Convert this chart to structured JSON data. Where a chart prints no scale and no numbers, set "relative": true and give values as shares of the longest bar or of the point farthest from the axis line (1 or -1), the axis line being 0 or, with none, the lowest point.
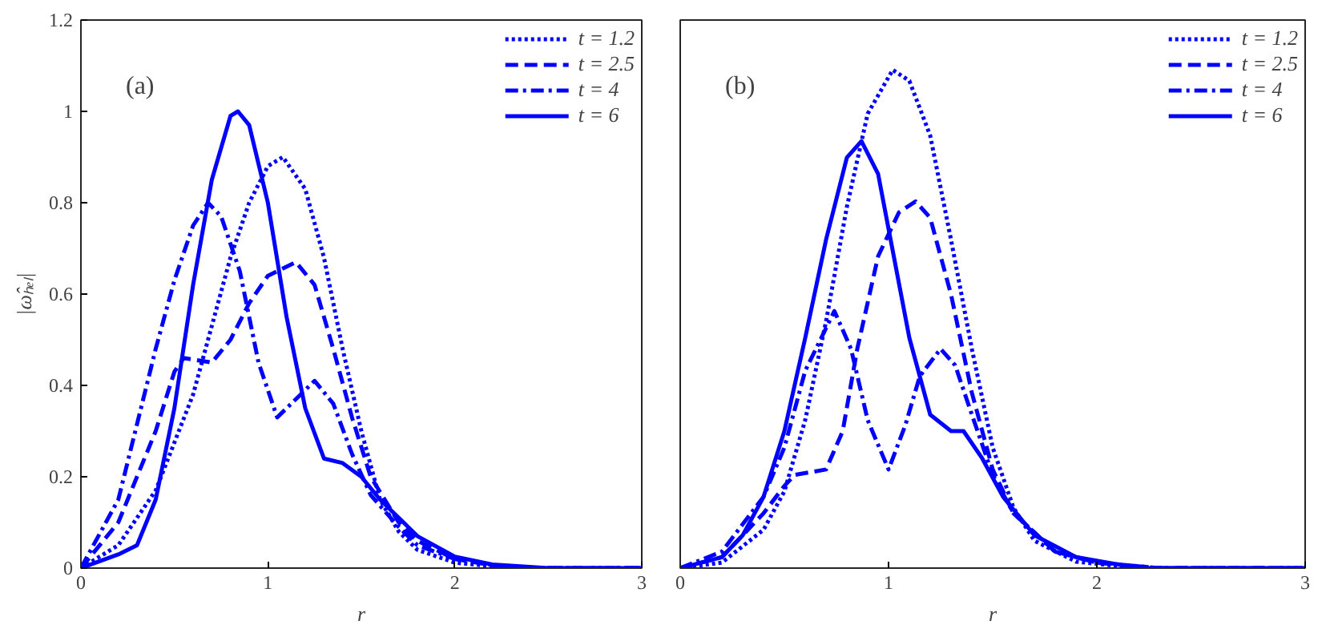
{
  "chart_data": [
    {
      "type": "line",
      "xlabel": "r",
      "ylabel": "|ω̂ₕₑₗ|",
      "annotations": [
        "(a)"
      ],
      "xlim": [
        0,
        3
      ],
      "ylim": [
        0,
        1.2
      ],
      "xticks": [
        0,
        1,
        2,
        3
      ],
      "yticks": [
        0,
        0.2,
        0.4,
        0.6,
        0.8,
        1,
        1.2
      ],
      "grid": false,
      "legend": "top right",
      "series": [
        {
          "name": "t = 1.2",
          "color": "#0000ff",
          "line_style": "dotted",
          "x": [
            0,
            0.2,
            0.4,
            0.6,
            0.8,
            0.9,
            1.0,
            1.08,
            1.2,
            1.3,
            1.4,
            1.5,
            1.6,
            1.7,
            1.8,
            2.0,
            2.3,
            3
          ],
          "values": [
            0,
            0.05,
            0.17,
            0.38,
            0.68,
            0.8,
            0.88,
            0.9,
            0.83,
            0.68,
            0.48,
            0.3,
            0.15,
            0.08,
            0.04,
            0.012,
            0,
            0
          ]
        },
        {
          "name": "t = 2.5",
          "color": "#0000ff",
          "line_style": "dashed",
          "x": [
            0,
            0.2,
            0.4,
            0.5,
            0.55,
            0.7,
            0.8,
            0.9,
            1.0,
            1.15,
            1.25,
            1.35,
            1.45,
            1.55,
            1.7,
            1.8,
            2.0,
            2.3,
            3
          ],
          "values": [
            0,
            0.1,
            0.3,
            0.43,
            0.46,
            0.45,
            0.5,
            0.58,
            0.64,
            0.67,
            0.62,
            0.48,
            0.33,
            0.2,
            0.1,
            0.06,
            0.02,
            0,
            0
          ]
        },
        {
          "name": "t = 4",
          "color": "#0000ff",
          "line_style": "dashdot",
          "x": [
            0,
            0.2,
            0.4,
            0.5,
            0.6,
            0.68,
            0.75,
            0.85,
            0.95,
            1.05,
            1.1,
            1.25,
            1.35,
            1.45,
            1.55,
            1.7,
            1.8,
            2.0,
            2.3,
            3
          ],
          "values": [
            0,
            0.15,
            0.48,
            0.63,
            0.75,
            0.8,
            0.77,
            0.65,
            0.45,
            0.33,
            0.35,
            0.41,
            0.36,
            0.25,
            0.16,
            0.09,
            0.05,
            0.02,
            0,
            0
          ]
        },
        {
          "name": "t = 6",
          "color": "#0000ff",
          "line_style": "solid",
          "x": [
            0,
            0.2,
            0.3,
            0.4,
            0.5,
            0.6,
            0.7,
            0.8,
            0.84,
            0.9,
            1.0,
            1.1,
            1.2,
            1.3,
            1.4,
            1.5,
            1.6,
            1.8,
            2.0,
            2.2,
            2.5,
            3
          ],
          "values": [
            0,
            0.03,
            0.05,
            0.15,
            0.35,
            0.62,
            0.85,
            0.99,
            1.0,
            0.97,
            0.8,
            0.55,
            0.35,
            0.24,
            0.23,
            0.2,
            0.15,
            0.07,
            0.025,
            0.008,
            0,
            0
          ]
        }
      ]
    },
    {
      "type": "line",
      "xlabel": "r",
      "annotations": [
        "(b)"
      ],
      "relative": true,
      "xlim": [
        0,
        3
      ],
      "xticks": [
        0,
        1,
        2,
        3
      ],
      "tick_labels": "x",
      "grid": false,
      "legend": "top right",
      "series": [
        {
          "name": "t = 1.2",
          "color": "#0000ff",
          "line_style": "dotted",
          "x": [
            0,
            0.2,
            0.4,
            0.5,
            0.6,
            0.7,
            0.8,
            0.9,
            1.02,
            1.1,
            1.2,
            1.3,
            1.4,
            1.5,
            1.6,
            1.7,
            1.9,
            2.2,
            3
          ],
          "values": [
            0,
            0.011,
            0.077,
            0.154,
            0.297,
            0.495,
            0.725,
            0.912,
            1,
            0.978,
            0.868,
            0.659,
            0.44,
            0.242,
            0.121,
            0.055,
            0.013,
            0,
            0
          ]
        },
        {
          "name": "t = 2.5",
          "color": "#0000ff",
          "line_style": "dashed",
          "x": [
            0,
            0.2,
            0.4,
            0.5,
            0.55,
            0.7,
            0.78,
            0.85,
            0.95,
            1.05,
            1.13,
            1.2,
            1.3,
            1.4,
            1.5,
            1.6,
            1.8,
            2.0,
            2.3,
            3
          ],
          "values": [
            0,
            0.022,
            0.11,
            0.165,
            0.187,
            0.198,
            0.275,
            0.44,
            0.626,
            0.714,
            0.736,
            0.703,
            0.549,
            0.352,
            0.198,
            0.11,
            0.033,
            0.011,
            0,
            0
          ]
        },
        {
          "name": "t = 4",
          "color": "#0000ff",
          "line_style": "dashdot",
          "x": [
            0,
            0.2,
            0.4,
            0.5,
            0.6,
            0.74,
            0.82,
            0.9,
            1.0,
            1.08,
            1.15,
            1.25,
            1.32,
            1.4,
            1.5,
            1.6,
            1.8,
            2.0,
            2.3,
            3
          ],
          "values": [
            0,
            0.033,
            0.143,
            0.242,
            0.396,
            0.516,
            0.44,
            0.297,
            0.198,
            0.286,
            0.385,
            0.44,
            0.407,
            0.308,
            0.187,
            0.11,
            0.033,
            0.011,
            0,
            0
          ]
        },
        {
          "name": "t = 6",
          "color": "#0000ff",
          "line_style": "solid",
          "x": [
            0,
            0.2,
            0.3,
            0.4,
            0.5,
            0.6,
            0.7,
            0.8,
            0.87,
            0.95,
            1.0,
            1.1,
            1.2,
            1.3,
            1.36,
            1.45,
            1.55,
            1.7,
            1.9,
            2.2,
            3
          ],
          "values": [
            0,
            0.022,
            0.066,
            0.143,
            0.275,
            0.462,
            0.659,
            0.824,
            0.857,
            0.791,
            0.681,
            0.462,
            0.308,
            0.275,
            0.275,
            0.22,
            0.143,
            0.066,
            0.022,
            0,
            0
          ]
        }
      ]
    }
  ]
}
